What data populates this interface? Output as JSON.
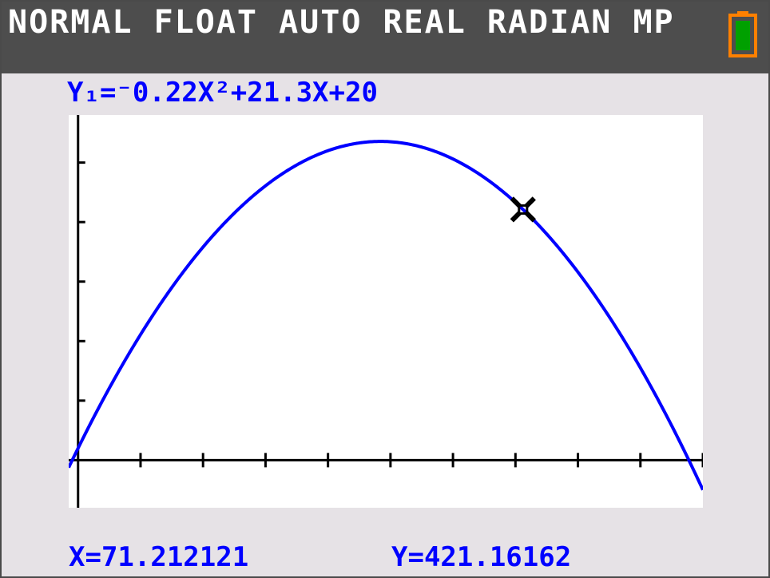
{
  "status_bar": {
    "mode_text": "NORMAL FLOAT AUTO REAL RADIAN MP",
    "battery_icon": "battery-icon",
    "battery_color": "#ff8000",
    "battery_fill_color": "#00a000"
  },
  "graph": {
    "equation_label": "Y₁=⁻0.22X²+21.3X+20",
    "function": {
      "a": -0.22,
      "b": 21.3,
      "c": 20
    },
    "window": {
      "xmin": -1.5,
      "xmax": 100,
      "ymin": -80,
      "ymax": 580
    },
    "x_ticks": [
      0,
      10,
      20,
      30,
      40,
      50,
      60,
      70,
      80,
      90,
      100
    ],
    "y_ticks": [
      100,
      200,
      300,
      400,
      500
    ],
    "curve_color": "#0000ff",
    "cursor_icon": "trace-cursor-icon",
    "cursor": {
      "x": 71.212121,
      "y": 421.16162
    }
  },
  "readout": {
    "x_text": "X=71.212121",
    "y_text": "Y=421.16162"
  }
}
